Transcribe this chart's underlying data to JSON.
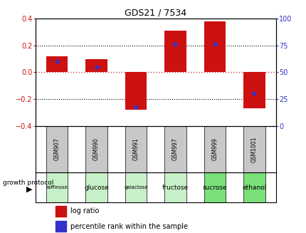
{
  "title": "GDS21 / 7534",
  "samples": [
    "GSM907",
    "GSM990",
    "GSM991",
    "GSM997",
    "GSM999",
    "GSM1001"
  ],
  "conditions": [
    "raffinose",
    "glucose",
    "galactose",
    "fructose",
    "sucrose",
    "ethanol"
  ],
  "log_ratios": [
    0.12,
    0.1,
    -0.28,
    0.31,
    0.38,
    -0.27
  ],
  "percentile_ranks": [
    0.6,
    0.55,
    0.18,
    0.76,
    0.76,
    0.3
  ],
  "bar_color": "#cc1111",
  "dot_color": "#3333cc",
  "ylim": [
    -0.4,
    0.4
  ],
  "y_right_ticks": [
    0,
    25,
    50,
    75,
    100
  ],
  "y_left_ticks": [
    -0.4,
    -0.2,
    0.0,
    0.2,
    0.4
  ],
  "dotted_line_y": [
    0.2,
    -0.2
  ],
  "zero_line_color": "#cc1111",
  "sample_bg": "#c8c8c8",
  "cond_bg_colors": [
    "#c8f0c8",
    "#c8f0c8",
    "#c8f0c8",
    "#c8f0c8",
    "#7ae07a",
    "#7ae07a"
  ],
  "legend_log_ratio": "log ratio",
  "legend_percentile": "percentile rank within the sample",
  "growth_protocol_label": "growth protocol",
  "bar_width": 0.55,
  "figsize": [
    4.31,
    3.27
  ],
  "dpi": 100
}
